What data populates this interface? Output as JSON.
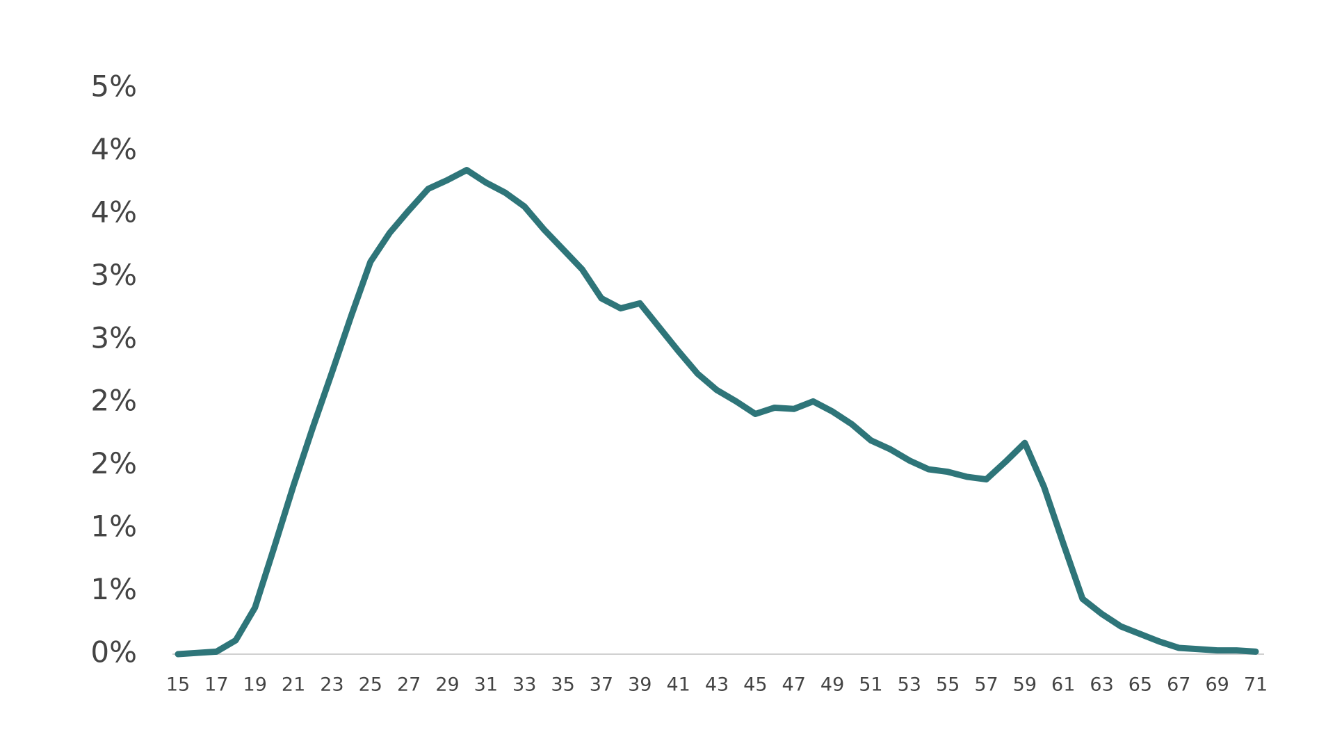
{
  "chart_data": {
    "type": "line",
    "x": [
      15,
      16,
      17,
      18,
      19,
      20,
      21,
      22,
      23,
      24,
      25,
      26,
      27,
      28,
      29,
      30,
      31,
      32,
      33,
      34,
      35,
      36,
      37,
      38,
      39,
      40,
      41,
      42,
      43,
      44,
      45,
      46,
      47,
      48,
      49,
      50,
      51,
      52,
      53,
      54,
      55,
      56,
      57,
      58,
      59,
      60,
      61,
      62,
      63,
      64,
      65,
      66,
      67,
      68,
      69,
      70,
      71
    ],
    "series": [
      {
        "color": "#2e7579",
        "values": [
          0,
          0.01,
          0.02,
          0.11,
          0.37,
          0.85,
          1.34,
          1.8,
          2.24,
          2.69,
          3.12,
          3.35,
          3.53,
          3.7,
          3.77,
          3.85,
          3.75,
          3.67,
          3.56,
          3.38,
          3.22,
          3.06,
          2.83,
          2.75,
          2.79,
          2.6,
          2.41,
          2.23,
          2.1,
          2.01,
          1.91,
          1.96,
          1.95,
          2.01,
          1.93,
          1.83,
          1.7,
          1.63,
          1.54,
          1.47,
          1.45,
          1.41,
          1.39,
          1.53,
          1.68,
          1.33,
          0.88,
          0.44,
          0.32,
          0.22,
          0.16,
          0.1,
          0.05,
          0.04,
          0.03,
          0.03,
          0.02
        ]
      }
    ],
    "xlim": [
      15,
      71
    ],
    "xticks": [
      15,
      17,
      19,
      21,
      23,
      25,
      27,
      29,
      31,
      33,
      35,
      37,
      39,
      41,
      43,
      45,
      47,
      49,
      51,
      53,
      55,
      57,
      59,
      61,
      63,
      65,
      67,
      69,
      71
    ],
    "ylim": [
      0,
      4.5
    ],
    "yticks": [
      {
        "value": 0,
        "label": "0%"
      },
      {
        "value": 0.5,
        "label": "1%"
      },
      {
        "value": 1,
        "label": "1%"
      },
      {
        "value": 1.5,
        "label": "2%"
      },
      {
        "value": 2,
        "label": "2%"
      },
      {
        "value": 2.5,
        "label": "3%"
      },
      {
        "value": 3,
        "label": "3%"
      },
      {
        "value": 3.5,
        "label": "4%"
      },
      {
        "value": 4,
        "label": "4%"
      },
      {
        "value": 4.5,
        "label": "5%"
      }
    ],
    "grid": false
  }
}
